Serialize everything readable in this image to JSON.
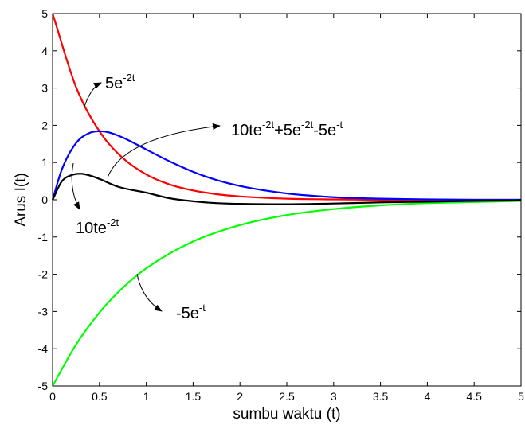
{
  "chart_data": {
    "type": "line",
    "title": "",
    "xlabel": "sumbu waktu (t)",
    "ylabel": "Arus I(t)",
    "xlim": [
      0,
      5
    ],
    "ylim": [
      -5,
      5
    ],
    "xticks": [
      0,
      0.5,
      1,
      1.5,
      2,
      2.5,
      3,
      3.5,
      4,
      4.5,
      5
    ],
    "xtick_labels": [
      "0",
      "0.5",
      "1",
      "1.5",
      "2",
      "2.5",
      "3",
      "3.5",
      "4",
      "4.5",
      "5"
    ],
    "yticks": [
      -5,
      -4,
      -3,
      -2,
      -1,
      0,
      1,
      2,
      3,
      4,
      5
    ],
    "ytick_labels": [
      "-5",
      "-4",
      "-3",
      "-2",
      "-1",
      "0",
      "1",
      "2",
      "3",
      "4",
      "5"
    ],
    "grid": false,
    "legend": "none",
    "series": [
      {
        "name": "",
        "color": "#ff0000",
        "x": [
          0,
          0.25,
          0.5,
          0.75,
          1,
          1.25,
          1.5,
          1.75,
          2,
          2.5,
          3,
          3.5,
          4,
          4.5,
          5
        ],
        "y": [
          5,
          3.03,
          1.84,
          1.12,
          0.68,
          0.41,
          0.25,
          0.15,
          0.09,
          0.03,
          0.01,
          0.0,
          0.0,
          0.0,
          0.0
        ]
      },
      {
        "name": "",
        "color": "#0000ff",
        "x": [
          0,
          0.1,
          0.25,
          0.4,
          0.5,
          0.6,
          0.75,
          1,
          1.25,
          1.5,
          1.75,
          2,
          2.5,
          3,
          3.5,
          4,
          4.5,
          5
        ],
        "y": [
          0,
          0.82,
          1.52,
          1.8,
          1.84,
          1.81,
          1.67,
          1.35,
          1.03,
          0.75,
          0.53,
          0.37,
          0.17,
          0.07,
          0.03,
          0.01,
          0.0,
          0.0
        ]
      },
      {
        "name": "",
        "color": "#00ff00",
        "x": [
          0,
          0.25,
          0.5,
          0.75,
          1,
          1.5,
          2,
          2.5,
          3,
          3.5,
          4,
          4.5,
          5
        ],
        "y": [
          -5,
          -3.89,
          -3.03,
          -2.36,
          -1.84,
          -1.12,
          -0.68,
          -0.41,
          -0.25,
          -0.15,
          -0.09,
          -0.06,
          -0.03
        ]
      },
      {
        "name": "",
        "color": "#000000",
        "x": [
          0,
          0.1,
          0.2,
          0.3,
          0.4,
          0.5,
          0.7,
          1,
          1.25,
          1.5,
          1.75,
          2,
          2.5,
          3,
          3.5,
          4,
          4.5,
          5
        ],
        "y": [
          0,
          0.5,
          0.66,
          0.7,
          0.65,
          0.56,
          0.35,
          0.19,
          0.04,
          -0.04,
          -0.09,
          -0.11,
          -0.12,
          -0.1,
          -0.07,
          -0.05,
          -0.03,
          -0.02
        ]
      }
    ],
    "annotations": [
      {
        "text": "5e",
        "sup": "-2t"
      },
      {
        "text": "10te",
        "sup": "-2t"
      },
      {
        "text": "10te",
        "sup": "-2t",
        "text2": "+5e",
        "sup2": "-2t",
        "text3": "-5e",
        "sup3": "-t"
      },
      {
        "text": "-5e",
        "sup": "-t"
      }
    ]
  }
}
